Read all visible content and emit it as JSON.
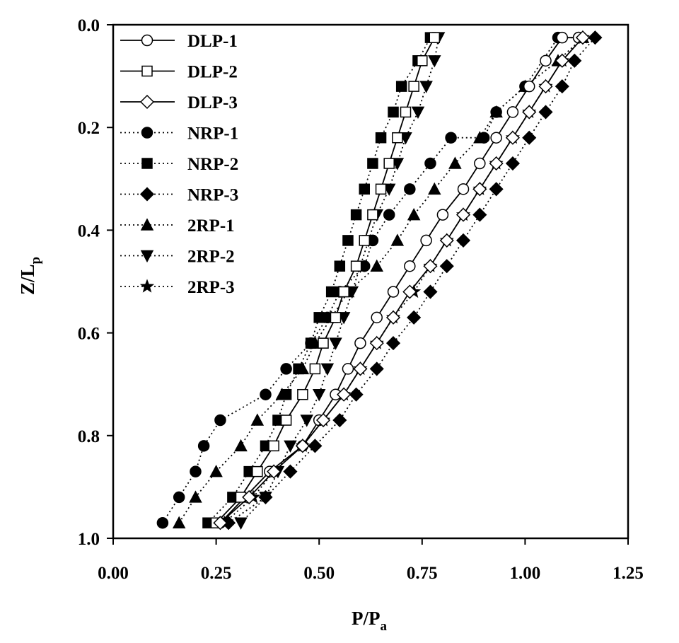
{
  "chart_data": {
    "type": "line",
    "title": "",
    "xlabel": "P/P",
    "xlabel_sub": "a",
    "ylabel": "Z/L",
    "ylabel_sub": "p",
    "xlim": [
      0,
      1.25
    ],
    "ylim": [
      0,
      1.0
    ],
    "y_inverted": true,
    "x_ticks": [
      "0.00",
      "0.25",
      "0.50",
      "0.75",
      "1.00",
      "1.25"
    ],
    "y_ticks": [
      "0.0",
      "0.2",
      "0.4",
      "0.6",
      "0.8",
      "1.0"
    ],
    "grid": false,
    "legend_position": "top-left",
    "series": [
      {
        "name": "DLP-1",
        "marker": "circle-open",
        "line": "solid",
        "x": [
          0.26,
          0.38,
          0.46,
          0.5,
          0.54,
          0.57,
          0.6,
          0.64,
          0.68,
          0.72,
          0.76,
          0.8,
          0.85,
          0.89,
          0.93,
          0.97,
          1.01,
          1.05,
          1.09,
          1.13
        ],
        "y": [
          0.97,
          0.87,
          0.82,
          0.77,
          0.72,
          0.67,
          0.62,
          0.57,
          0.52,
          0.47,
          0.42,
          0.37,
          0.32,
          0.27,
          0.22,
          0.17,
          0.12,
          0.07,
          0.025,
          0.025
        ]
      },
      {
        "name": "DLP-2",
        "marker": "square-open",
        "line": "solid",
        "x": [
          0.25,
          0.31,
          0.35,
          0.39,
          0.42,
          0.46,
          0.49,
          0.51,
          0.54,
          0.56,
          0.59,
          0.61,
          0.63,
          0.65,
          0.67,
          0.69,
          0.71,
          0.73,
          0.75,
          0.78
        ],
        "y": [
          0.97,
          0.92,
          0.87,
          0.82,
          0.77,
          0.72,
          0.67,
          0.62,
          0.57,
          0.52,
          0.47,
          0.42,
          0.37,
          0.32,
          0.27,
          0.22,
          0.17,
          0.12,
          0.07,
          0.025
        ]
      },
      {
        "name": "DLP-3",
        "marker": "diamond-open",
        "line": "solid",
        "x": [
          0.26,
          0.33,
          0.39,
          0.46,
          0.51,
          0.56,
          0.6,
          0.64,
          0.68,
          0.72,
          0.77,
          0.81,
          0.85,
          0.89,
          0.93,
          0.97,
          1.01,
          1.05,
          1.09,
          1.14
        ],
        "y": [
          0.97,
          0.92,
          0.87,
          0.82,
          0.77,
          0.72,
          0.67,
          0.62,
          0.57,
          0.52,
          0.47,
          0.42,
          0.37,
          0.32,
          0.27,
          0.22,
          0.17,
          0.12,
          0.07,
          0.025
        ]
      },
      {
        "name": "NRP-1",
        "marker": "circle-filled",
        "line": "dotted",
        "x": [
          0.12,
          0.16,
          0.2,
          0.22,
          0.26,
          0.37,
          0.42,
          0.48,
          0.52,
          0.55,
          0.61,
          0.63,
          0.67,
          0.72,
          0.77,
          0.82,
          0.9,
          0.93,
          1.0,
          1.08,
          1.13
        ],
        "y": [
          0.97,
          0.92,
          0.87,
          0.82,
          0.77,
          0.72,
          0.67,
          0.62,
          0.57,
          0.52,
          0.47,
          0.42,
          0.37,
          0.32,
          0.27,
          0.22,
          0.22,
          0.17,
          0.12,
          0.025,
          0.025
        ]
      },
      {
        "name": "NRP-2",
        "marker": "square-filled",
        "line": "dotted",
        "x": [
          0.23,
          0.29,
          0.33,
          0.37,
          0.4,
          0.42,
          0.45,
          0.48,
          0.5,
          0.53,
          0.55,
          0.57,
          0.59,
          0.61,
          0.63,
          0.65,
          0.68,
          0.7,
          0.74,
          0.77
        ],
        "y": [
          0.97,
          0.92,
          0.87,
          0.82,
          0.77,
          0.72,
          0.67,
          0.62,
          0.57,
          0.52,
          0.47,
          0.42,
          0.37,
          0.32,
          0.27,
          0.22,
          0.17,
          0.12,
          0.07,
          0.025
        ]
      },
      {
        "name": "NRP-3",
        "marker": "diamond-filled",
        "line": "dotted",
        "x": [
          0.28,
          0.37,
          0.43,
          0.49,
          0.55,
          0.59,
          0.64,
          0.68,
          0.73,
          0.77,
          0.81,
          0.85,
          0.89,
          0.93,
          0.97,
          1.01,
          1.05,
          1.09,
          1.12,
          1.17
        ],
        "y": [
          0.97,
          0.92,
          0.87,
          0.82,
          0.77,
          0.72,
          0.67,
          0.62,
          0.57,
          0.52,
          0.47,
          0.42,
          0.37,
          0.32,
          0.27,
          0.22,
          0.17,
          0.12,
          0.07,
          0.025
        ]
      },
      {
        "name": "2RP-1",
        "marker": "triangle-up-filled",
        "line": "dotted",
        "x": [
          0.16,
          0.2,
          0.25,
          0.31,
          0.35,
          0.41,
          0.46,
          0.49,
          0.53,
          0.57,
          0.64,
          0.69,
          0.73,
          0.78,
          0.83,
          0.89,
          0.93,
          1.0,
          1.08,
          1.14
        ],
        "y": [
          0.97,
          0.92,
          0.87,
          0.82,
          0.77,
          0.72,
          0.67,
          0.62,
          0.57,
          0.52,
          0.47,
          0.42,
          0.37,
          0.32,
          0.27,
          0.22,
          0.17,
          0.12,
          0.07,
          0.025
        ]
      },
      {
        "name": "2RP-2",
        "marker": "triangle-down-filled",
        "line": "dotted",
        "x": [
          0.31,
          0.37,
          0.4,
          0.43,
          0.47,
          0.5,
          0.52,
          0.54,
          0.56,
          0.58,
          0.6,
          0.62,
          0.64,
          0.67,
          0.69,
          0.71,
          0.74,
          0.76,
          0.78,
          0.79
        ],
        "y": [
          0.97,
          0.92,
          0.87,
          0.82,
          0.77,
          0.72,
          0.67,
          0.62,
          0.57,
          0.52,
          0.47,
          0.42,
          0.37,
          0.32,
          0.27,
          0.22,
          0.17,
          0.12,
          0.07,
          0.025
        ]
      },
      {
        "name": "2RP-3",
        "marker": "star-filled",
        "line": "dotted",
        "x": [
          0.27,
          0.34,
          0.39,
          0.46,
          0.51,
          0.56,
          0.6,
          0.64,
          0.68,
          0.73,
          0.77,
          0.81,
          0.85,
          0.89,
          0.93,
          0.97,
          1.01,
          1.05,
          1.09,
          1.14
        ],
        "y": [
          0.97,
          0.92,
          0.87,
          0.82,
          0.77,
          0.72,
          0.67,
          0.62,
          0.57,
          0.52,
          0.47,
          0.42,
          0.37,
          0.32,
          0.27,
          0.22,
          0.17,
          0.12,
          0.07,
          0.025
        ]
      }
    ]
  }
}
